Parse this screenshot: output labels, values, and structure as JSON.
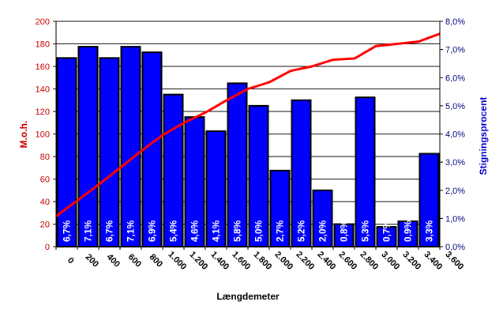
{
  "chart_data": {
    "type": "bar+line",
    "xlabel": "Længdemeter",
    "ylabel_left": "M.o.h.",
    "ylabel_right": "Stigningsprocent",
    "ylim_left": [
      0,
      200
    ],
    "ylim_right": [
      0,
      8
    ],
    "yticks_left": [
      "0",
      "20",
      "40",
      "60",
      "80",
      "100",
      "120",
      "140",
      "160",
      "180",
      "200"
    ],
    "yticks_right": [
      "0,0%",
      "1,0%",
      "2,0%",
      "3,0%",
      "4,0%",
      "5,0%",
      "6,0%",
      "7,0%",
      "8,0%"
    ],
    "x_tick_labels": [
      "0",
      "200",
      "400",
      "600",
      "800",
      "1.000",
      "1.200",
      "1.400",
      "1.600",
      "1.800",
      "2.000",
      "2.200",
      "2.400",
      "2.600",
      "2.800",
      "3.000",
      "3.200",
      "3.400",
      "3.600"
    ],
    "grid": true,
    "bars": {
      "axis": "right",
      "color": "#0000ff",
      "values": [
        6.7,
        7.1,
        6.7,
        7.1,
        6.9,
        5.4,
        4.6,
        4.1,
        5.8,
        5.0,
        2.7,
        5.2,
        2.0,
        0.8,
        5.3,
        0.7,
        0.9,
        3.3
      ],
      "labels": [
        "6,7%",
        "7,1%",
        "6,7%",
        "7,1%",
        "6,9%",
        "5,4%",
        "4,6%",
        "4,1%",
        "5,8%",
        "5,0%",
        "2,7%",
        "5,2%",
        "2,0%",
        "0,8%",
        "5,3%",
        "0,7%",
        "0,9%",
        "3,3%"
      ]
    },
    "line": {
      "axis": "left",
      "color": "#ff0000",
      "x": [
        0,
        200,
        400,
        600,
        800,
        1000,
        1200,
        1400,
        1600,
        1800,
        2000,
        2200,
        2400,
        2600,
        2800,
        3000,
        3200,
        3400,
        3600
      ],
      "y": [
        27,
        41,
        55,
        70,
        85,
        99,
        110,
        119,
        130,
        140,
        146,
        156,
        160,
        166,
        167,
        178,
        180,
        182,
        189
      ]
    }
  }
}
